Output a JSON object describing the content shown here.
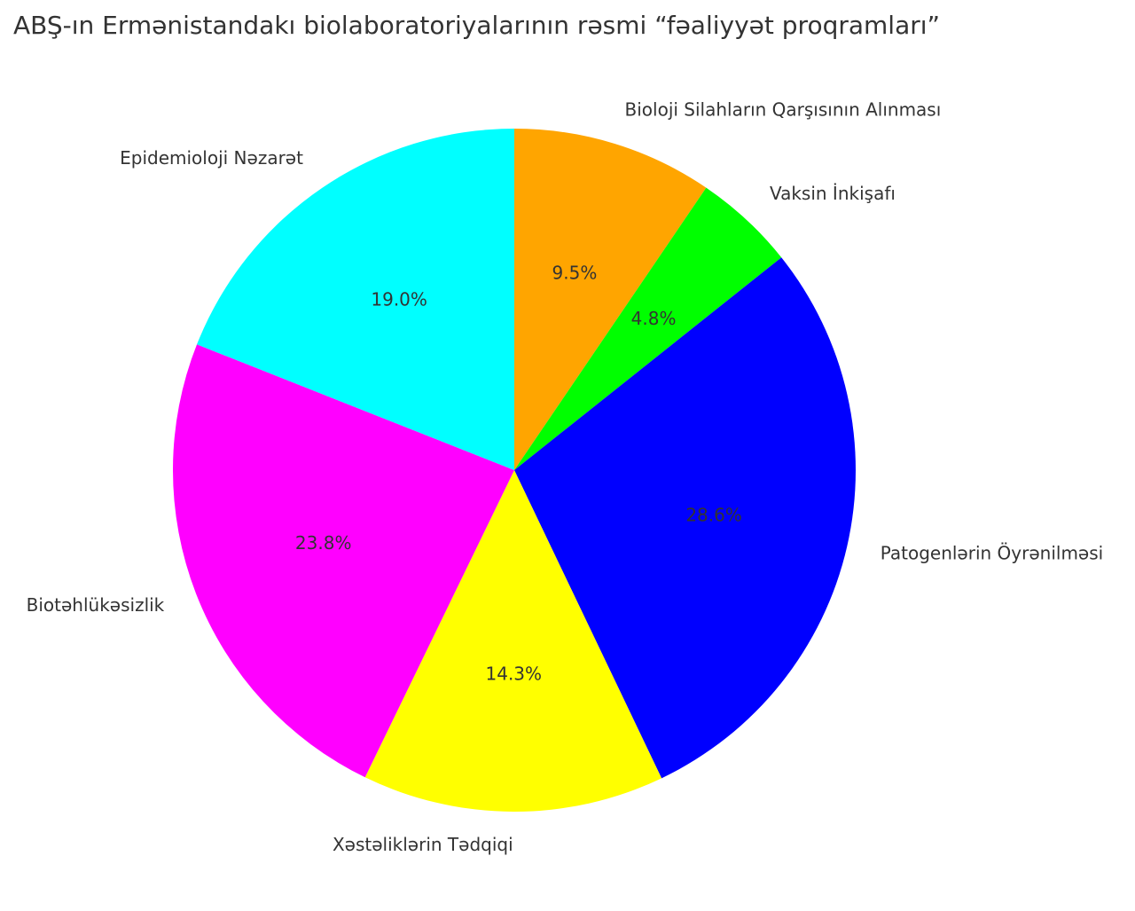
{
  "chart_data": {
    "type": "pie",
    "title": "ABŞ-ın Ermənistandakı biolaboratoriyalarının rəsmi “fəaliyyət proqramları”",
    "categories": [
      "Bioloji Silahların Qarşısının Alınması",
      "Vaksin İnkişafı",
      "Patogenlərin Öyrənilməsi",
      "Xəstəliklərin Tədqiqi",
      "Biotəhlükəsizlik",
      "Epidemioloji Nəzarət"
    ],
    "values": [
      9.5,
      4.8,
      28.6,
      14.3,
      23.8,
      19.0
    ],
    "value_labels": [
      "9.5%",
      "4.8%",
      "28.6%",
      "14.3%",
      "23.8%",
      "19.0%"
    ],
    "colors": [
      "#ffa500",
      "#00ff00",
      "#0000ff",
      "#ffff00",
      "#ff00ff",
      "#00ffff"
    ]
  }
}
